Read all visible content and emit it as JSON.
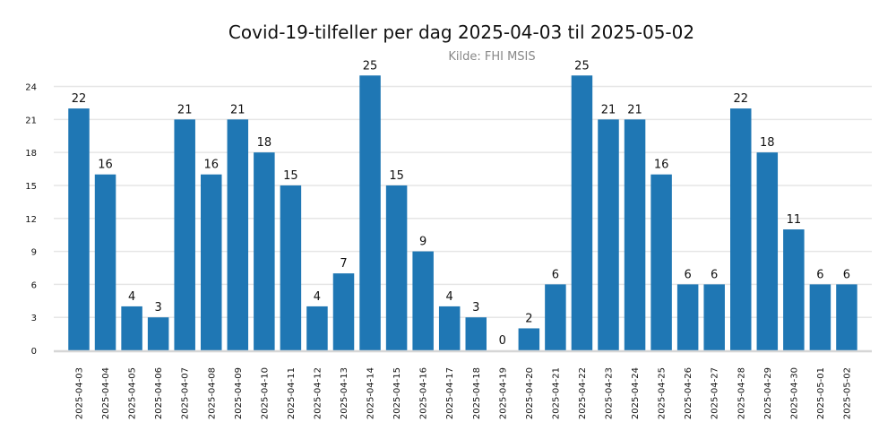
{
  "chart_data": {
    "type": "bar",
    "title": "Covid-19-tilfeller per dag 2025-04-03 til 2025-05-02",
    "subtitle": "Kilde: FHI MSIS",
    "xlabel": "",
    "ylabel": "",
    "ylim": [
      0,
      25
    ],
    "yticks": [
      0,
      3,
      6,
      9,
      12,
      15,
      18,
      21,
      24
    ],
    "grid": true,
    "bar_color": "#1f77b4",
    "categories": [
      "2025-04-03",
      "2025-04-04",
      "2025-04-05",
      "2025-04-06",
      "2025-04-07",
      "2025-04-08",
      "2025-04-09",
      "2025-04-10",
      "2025-04-11",
      "2025-04-12",
      "2025-04-13",
      "2025-04-14",
      "2025-04-15",
      "2025-04-16",
      "2025-04-17",
      "2025-04-18",
      "2025-04-19",
      "2025-04-20",
      "2025-04-21",
      "2025-04-22",
      "2025-04-23",
      "2025-04-24",
      "2025-04-25",
      "2025-04-26",
      "2025-04-27",
      "2025-04-28",
      "2025-04-29",
      "2025-04-30",
      "2025-05-01",
      "2025-05-02"
    ],
    "values": [
      22,
      16,
      4,
      3,
      21,
      16,
      21,
      18,
      15,
      4,
      7,
      25,
      15,
      9,
      4,
      3,
      0,
      2,
      6,
      25,
      21,
      21,
      16,
      6,
      6,
      22,
      18,
      11,
      6,
      6
    ]
  }
}
